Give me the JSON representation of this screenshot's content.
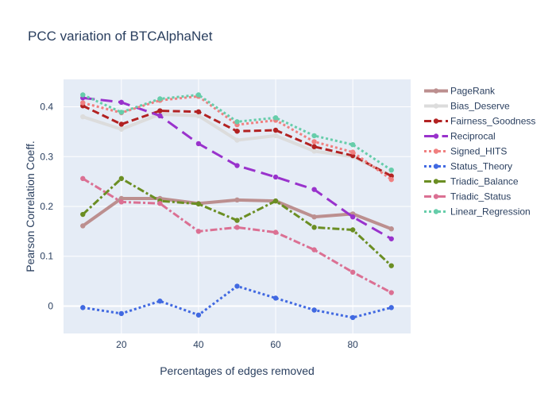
{
  "chart_data": {
    "type": "line",
    "title": "PCC variation of BTCAlphaNet",
    "xlabel": "Percentages of edges removed",
    "ylabel": "Pearson Correlation Coeff.",
    "x": [
      10,
      20,
      30,
      40,
      50,
      60,
      70,
      80,
      90
    ],
    "xlim": [
      5,
      95
    ],
    "ylim": [
      -0.055,
      0.455
    ],
    "xticks": [
      20,
      40,
      60,
      80
    ],
    "yticks": [
      0,
      0.1,
      0.2,
      0.3,
      0.4
    ],
    "ytick_labels": [
      "0",
      "0.1",
      "0.2",
      "0.3",
      "0.4"
    ],
    "grid": true,
    "legend_position": "right",
    "series": [
      {
        "name": "PageRank",
        "color": "#bc8f8f",
        "dash": "solid",
        "width": 4,
        "values": [
          0.161,
          0.216,
          0.216,
          0.206,
          0.213,
          0.211,
          0.179,
          0.185,
          0.155
        ]
      },
      {
        "name": "Bias_Deserve",
        "color": "#dcdcdc",
        "dash": "solid",
        "width": 4,
        "values": [
          0.38,
          0.355,
          0.385,
          0.382,
          0.333,
          0.342,
          0.311,
          0.3,
          0.262
        ]
      },
      {
        "name": "Fairness_Goodness",
        "color": "#b22222",
        "dash": "dash",
        "width": 3,
        "values": [
          0.402,
          0.365,
          0.392,
          0.39,
          0.351,
          0.353,
          0.32,
          0.302,
          0.261
        ]
      },
      {
        "name": "Reciprocal",
        "color": "#9932cc",
        "dash": "longdash",
        "width": 3,
        "values": [
          0.418,
          0.409,
          0.382,
          0.326,
          0.282,
          0.259,
          0.234,
          0.179,
          0.135
        ]
      },
      {
        "name": "Signed_HITS",
        "color": "#f08080",
        "dash": "dot",
        "width": 3,
        "values": [
          0.408,
          0.388,
          0.413,
          0.421,
          0.364,
          0.373,
          0.33,
          0.309,
          0.254
        ]
      },
      {
        "name": "Status_Theory",
        "color": "#4169e1",
        "dash": "dot",
        "width": 3,
        "values": [
          -0.003,
          -0.015,
          0.01,
          -0.018,
          0.04,
          0.016,
          -0.008,
          -0.023,
          -0.003
        ]
      },
      {
        "name": "Triadic_Balance",
        "color": "#6b8e23",
        "dash": "dashdot",
        "width": 3,
        "values": [
          0.184,
          0.256,
          0.211,
          0.205,
          0.172,
          0.211,
          0.158,
          0.153,
          0.081
        ]
      },
      {
        "name": "Triadic_Status",
        "color": "#db7093",
        "dash": "dashdot",
        "width": 3,
        "values": [
          0.256,
          0.209,
          0.206,
          0.15,
          0.158,
          0.148,
          0.113,
          0.068,
          0.027
        ]
      },
      {
        "name": "Linear_Regression",
        "color": "#66cdaa",
        "dash": "dot",
        "width": 3,
        "values": [
          0.424,
          0.389,
          0.416,
          0.424,
          0.37,
          0.378,
          0.342,
          0.324,
          0.273
        ]
      }
    ]
  }
}
